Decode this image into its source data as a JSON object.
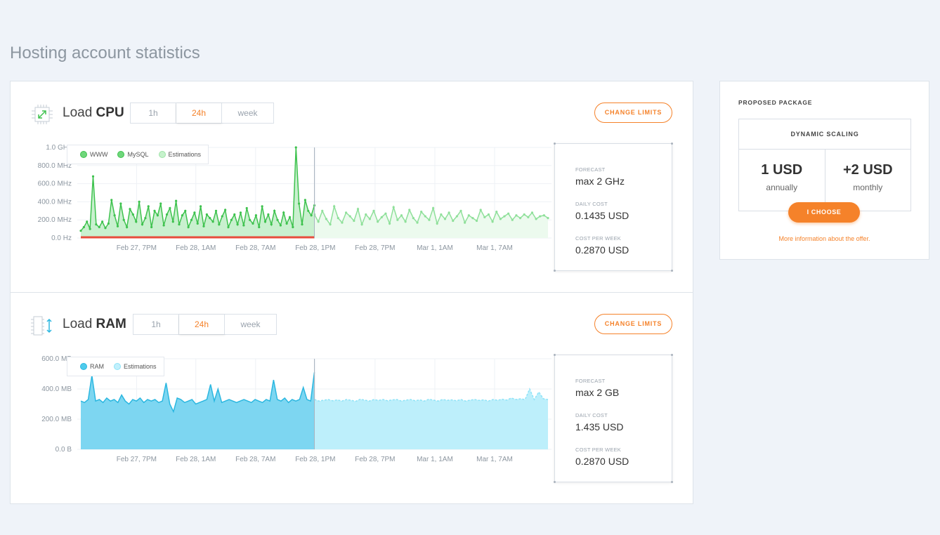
{
  "page": {
    "title": "Hosting account statistics"
  },
  "cpu": {
    "title_prefix": "Load ",
    "title_bold": "CPU",
    "tabs": [
      "1h",
      "24h",
      "week"
    ],
    "active_tab": "24h",
    "change_limits_label": "CHANGE LIMITS",
    "legend": [
      {
        "label": "WWW",
        "color": "#5cd16a"
      },
      {
        "label": "MySQL",
        "color": "#5cd16a"
      },
      {
        "label": "Estimations",
        "color": "#b8efc0"
      }
    ],
    "stats": [
      {
        "label": "FORECAST",
        "value": "max 2 GHz"
      },
      {
        "label": "DAILY COST",
        "value": "0.1435 USD"
      },
      {
        "label": "COST PER WEEK",
        "value": "0.2870 USD"
      }
    ]
  },
  "ram": {
    "title_prefix": "Load ",
    "title_bold": "RAM",
    "tabs": [
      "1h",
      "24h",
      "week"
    ],
    "active_tab": "24h",
    "change_limits_label": "CHANGE LIMITS",
    "legend": [
      {
        "label": "RAM",
        "color": "#3cc3e8"
      },
      {
        "label": "Estimations",
        "color": "#b0ecfb"
      }
    ],
    "stats": [
      {
        "label": "FORECAST",
        "value": "max 2 GB"
      },
      {
        "label": "DAILY COST",
        "value": "1.435 USD"
      },
      {
        "label": "COST PER WEEK",
        "value": "0.2870 USD"
      }
    ]
  },
  "package": {
    "heading": "PROPOSED PACKAGE",
    "name": "DYNAMIC SCALING",
    "price_annual": "1 USD",
    "price_annual_period": "annually",
    "price_monthly": "+2 USD",
    "price_monthly_period": "monthly",
    "choose_label": "I CHOOSE",
    "more_info": "More information about the offer."
  },
  "chart_data": [
    {
      "type": "line",
      "name": "cpu",
      "y_ticks": [
        "1.0 GHz",
        "800.0 MHz",
        "600.0 MHz",
        "400.0 MHz",
        "200.0 MHz",
        "0.0 Hz"
      ],
      "y_tick_values": [
        1000,
        800,
        600,
        400,
        200,
        0
      ],
      "ylim": [
        0,
        1000
      ],
      "x_ticks": [
        "Feb 27, 7PM",
        "Feb 28, 1AM",
        "Feb 28, 7AM",
        "Feb 28, 1PM",
        "Feb 28, 7PM",
        "Mar 1, 1AM",
        "Mar 1, 7AM"
      ],
      "grid": true,
      "legend_position": "top-left",
      "series": [
        {
          "name": "WWW",
          "color": "#3ec24e",
          "fill": "#c9f0cf",
          "values": [
            80,
            120,
            180,
            100,
            680,
            150,
            120,
            180,
            110,
            160,
            420,
            250,
            130,
            380,
            200,
            120,
            320,
            260,
            180,
            400,
            150,
            220,
            350,
            120,
            300,
            250,
            380,
            140,
            260,
            330,
            180,
            410,
            150,
            250,
            300,
            120,
            200,
            280,
            160,
            350,
            130,
            260,
            220,
            180,
            300,
            150,
            240,
            310,
            120,
            200,
            260,
            150,
            280,
            140,
            330,
            200,
            160,
            250,
            120,
            350,
            180,
            260,
            150,
            300,
            200,
            140,
            280,
            160,
            230,
            120,
            1000,
            380,
            150,
            420,
            300,
            250,
            360
          ]
        },
        {
          "name": "MySQL",
          "color": "#e74c3c",
          "values": [
            2,
            2,
            2,
            2,
            2,
            2,
            2,
            2,
            2,
            2,
            2,
            2,
            2,
            2,
            2,
            2,
            2,
            2,
            2,
            2
          ]
        },
        {
          "name": "Estimations",
          "color": "#8fe09a",
          "fill": "#ecfaee",
          "values": [
            260,
            180,
            300,
            210,
            150,
            350,
            220,
            170,
            280,
            240,
            190,
            320,
            150,
            260,
            210,
            300,
            180,
            230,
            270,
            160,
            340,
            200,
            250,
            180,
            310,
            220,
            170,
            290,
            240,
            200,
            330,
            160,
            260,
            210,
            280,
            190,
            240,
            300,
            170,
            250,
            220,
            190,
            310,
            230,
            260,
            180,
            290,
            210,
            240,
            270,
            200,
            250,
            220,
            260,
            230,
            280,
            210,
            240,
            250,
            220
          ]
        }
      ]
    },
    {
      "type": "area",
      "name": "ram",
      "y_ticks": [
        "600.0 MB",
        "400.0 MB",
        "200.0 MB",
        "0.0 B"
      ],
      "y_tick_values": [
        600,
        400,
        200,
        0
      ],
      "ylim": [
        0,
        600
      ],
      "x_ticks": [
        "Feb 27, 7PM",
        "Feb 28, 1AM",
        "Feb 28, 7AM",
        "Feb 28, 1PM",
        "Feb 28, 7PM",
        "Mar 1, 1AM",
        "Mar 1, 7AM"
      ],
      "grid": true,
      "legend_position": "top-left",
      "series": [
        {
          "name": "RAM",
          "color": "#2bb7e0",
          "fill": "#7dd6f1",
          "values": [
            320,
            310,
            330,
            490,
            320,
            330,
            310,
            340,
            320,
            330,
            310,
            360,
            320,
            300,
            330,
            320,
            340,
            310,
            330,
            320,
            330,
            310,
            320,
            440,
            300,
            250,
            340,
            330,
            310,
            320,
            330,
            300,
            310,
            320,
            330,
            430,
            320,
            400,
            310,
            320,
            330,
            320,
            310,
            320,
            330,
            320,
            310,
            330,
            320,
            310,
            330,
            320,
            460,
            330,
            320,
            340,
            310,
            330,
            320,
            330,
            410,
            330,
            320,
            510
          ]
        },
        {
          "name": "Estimations",
          "color": "#8ee3f7",
          "fill": "#bdeffb",
          "values": [
            330,
            320,
            325,
            330,
            322,
            328,
            320,
            330,
            325,
            318,
            332,
            326,
            320,
            330,
            324,
            330,
            322,
            328,
            330,
            320,
            326,
            330,
            322,
            328,
            320,
            332,
            326,
            320,
            330,
            325,
            328,
            322,
            330,
            320,
            326,
            330,
            324,
            328,
            320,
            330,
            325,
            332,
            326,
            340,
            330,
            335,
            330,
            400,
            330,
            380,
            335,
            330
          ]
        }
      ]
    }
  ]
}
